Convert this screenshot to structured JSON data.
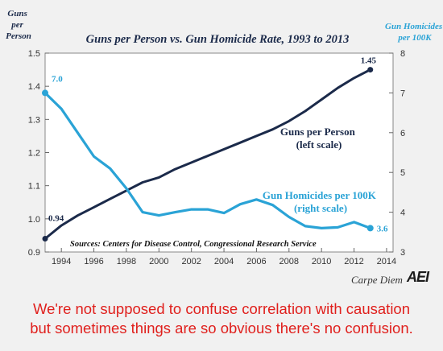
{
  "chart_data": {
    "type": "line",
    "title": "Guns per Person vs. Gun Homicide Rate, 1993 to 2013",
    "left_axis_label": [
      "Guns",
      "per",
      "Person"
    ],
    "right_axis_label": [
      "Gun Homicides",
      "per 100K"
    ],
    "x_ticks": [
      "1994",
      "1996",
      "1998",
      "2000",
      "2002",
      "2004",
      "2006",
      "2008",
      "2010",
      "2012",
      "2014"
    ],
    "left_ticks": [
      "0.9",
      "1.0",
      "1.1",
      "1.2",
      "1.3",
      "1.4",
      "1.5"
    ],
    "right_ticks": [
      "3",
      "4",
      "5",
      "6",
      "7",
      "8"
    ],
    "x_range": [
      1993,
      2014.4
    ],
    "left_range": [
      0.9,
      1.5
    ],
    "right_range": [
      3,
      8
    ],
    "grid": false,
    "series": [
      {
        "name": "Guns per Person",
        "label_lines": [
          "Guns per Person",
          "(left scale)"
        ],
        "axis": "left",
        "color": "#1b2a4a",
        "x": [
          1993,
          1994,
          1995,
          1996,
          1997,
          1998,
          1999,
          2000,
          2001,
          2002,
          2003,
          2004,
          2005,
          2006,
          2007,
          2008,
          2009,
          2010,
          2011,
          2012,
          2013
        ],
        "y": [
          0.94,
          0.98,
          1.01,
          1.035,
          1.06,
          1.085,
          1.11,
          1.125,
          1.15,
          1.17,
          1.19,
          1.21,
          1.23,
          1.25,
          1.27,
          1.295,
          1.325,
          1.36,
          1.395,
          1.425,
          1.45
        ],
        "start_label": "0.94",
        "end_label": "1.45"
      },
      {
        "name": "Gun Homicides per 100K",
        "label_lines": [
          "Gun Homicides per 100K",
          "(right scale)"
        ],
        "axis": "right",
        "color": "#2aa3d6",
        "x": [
          1993,
          1994,
          1995,
          1996,
          1997,
          1998,
          1999,
          2000,
          2001,
          2002,
          2003,
          2004,
          2005,
          2006,
          2007,
          2008,
          2009,
          2010,
          2011,
          2012,
          2013
        ],
        "y": [
          7.0,
          6.6,
          6.0,
          5.4,
          5.1,
          4.6,
          4.0,
          3.92,
          4.0,
          4.07,
          4.07,
          3.98,
          4.2,
          4.32,
          4.18,
          3.88,
          3.65,
          3.6,
          3.62,
          3.75,
          3.6
        ],
        "start_label": "7.0",
        "end_label": "3.6"
      }
    ],
    "sources": "Sources: Centers for Disease Control, Congressional Research Service"
  },
  "footer": {
    "brand": "Carpe Diem",
    "logo": "AEI"
  },
  "caption": {
    "line1": "We're not supposed to confuse correlation with causation",
    "line2": "but sometimes things are so obvious there's no confusion."
  }
}
